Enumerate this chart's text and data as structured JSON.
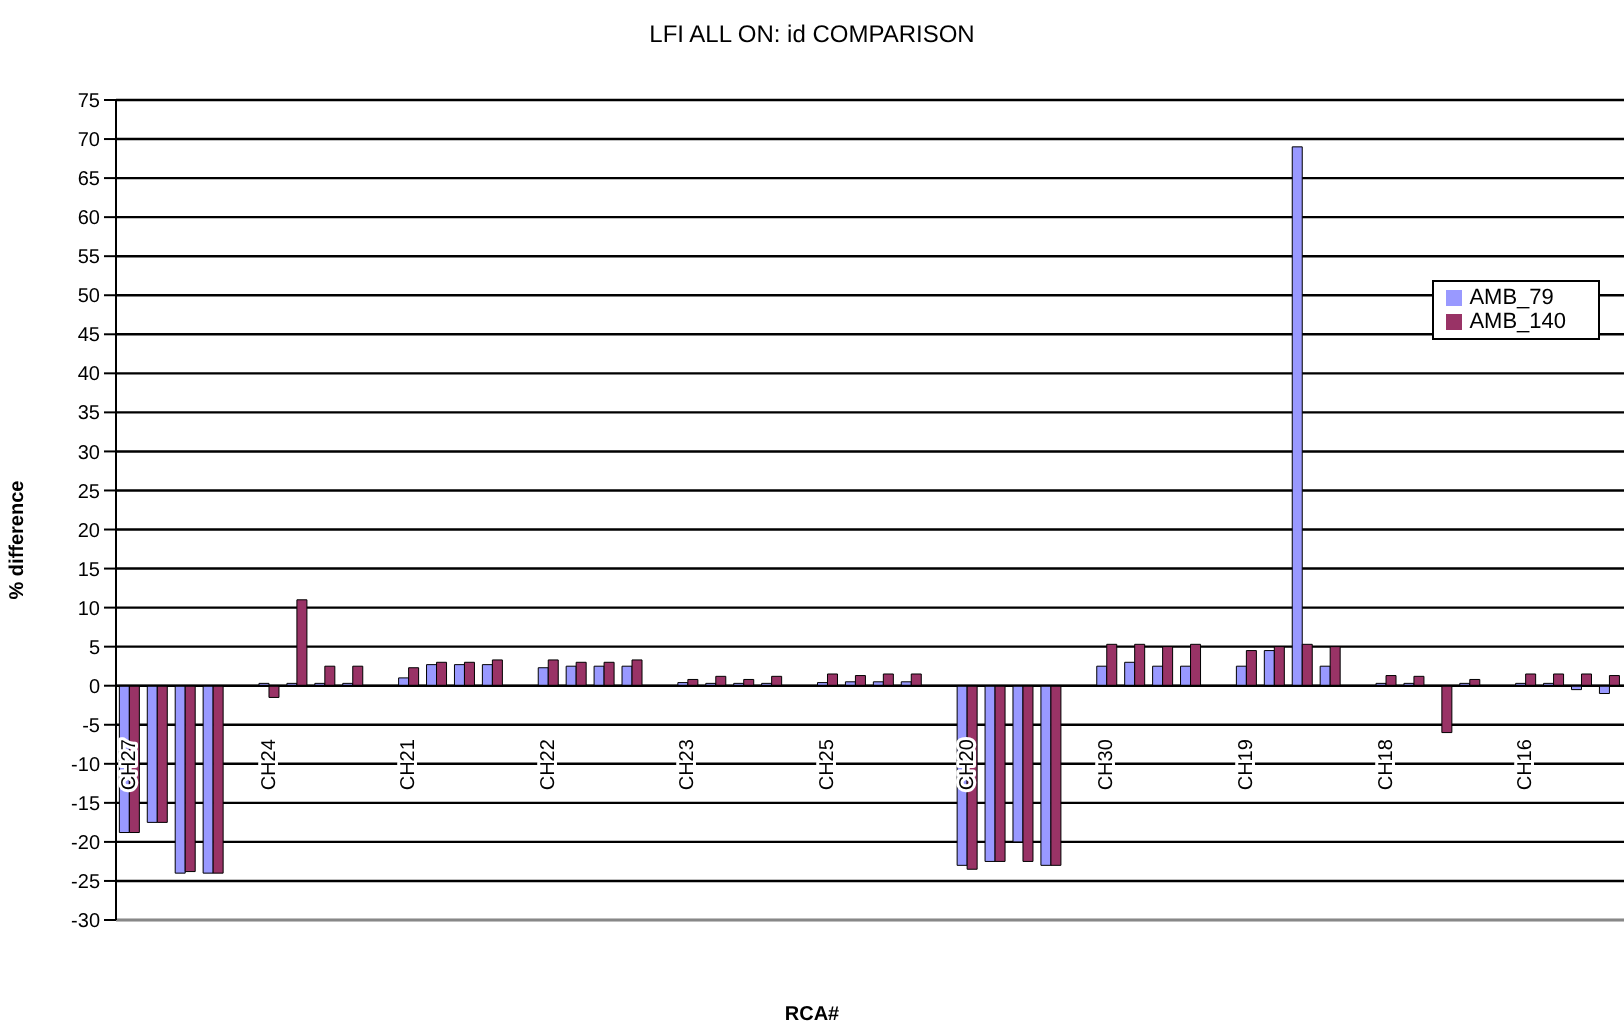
{
  "chart_data": {
    "type": "bar",
    "title": "LFI ALL ON: id COMPARISON",
    "xlabel": "RCA#",
    "ylabel": "% difference",
    "categories": [
      "CH27",
      null,
      null,
      null,
      null,
      "CH24",
      null,
      null,
      null,
      null,
      "CH21",
      null,
      null,
      null,
      null,
      "CH22",
      null,
      null,
      null,
      null,
      "CH23",
      null,
      null,
      null,
      null,
      "CH25",
      null,
      null,
      null,
      null,
      "CH20",
      null,
      null,
      null,
      null,
      "CH30",
      null,
      null,
      null,
      null,
      "CH19",
      null,
      null,
      null,
      null,
      "CH18",
      null,
      null,
      null,
      null,
      "CH16",
      null,
      null,
      null
    ],
    "series": [
      {
        "name": "AMB_79",
        "color": "#9999ff",
        "values": [
          -18.8,
          -17.5,
          -24,
          -24,
          null,
          0.3,
          0.3,
          0.3,
          0.3,
          null,
          1,
          2.7,
          2.7,
          2.7,
          null,
          2.3,
          2.5,
          2.5,
          2.5,
          null,
          0.4,
          0.3,
          0.3,
          0.3,
          null,
          0.4,
          0.5,
          0.5,
          0.5,
          null,
          -23,
          -22.5,
          -20,
          -23,
          null,
          2.5,
          3,
          2.5,
          2.5,
          null,
          2.5,
          4.5,
          69,
          2.5,
          null,
          0.3,
          0.3,
          0,
          0.3,
          null,
          0.3,
          0.3,
          -0.5,
          -1
        ]
      },
      {
        "name": "AMB_140",
        "color": "#993366",
        "values": [
          -18.8,
          -17.5,
          -23.8,
          -24,
          null,
          -1.5,
          11,
          2.5,
          2.5,
          null,
          2.3,
          3,
          3,
          3.3,
          null,
          3.3,
          3,
          3,
          3.3,
          null,
          0.8,
          1.2,
          0.8,
          1.2,
          null,
          1.5,
          1.3,
          1.5,
          1.5,
          null,
          -23.5,
          -22.5,
          -22.5,
          -23,
          null,
          5.3,
          5.3,
          5,
          5.3,
          null,
          4.5,
          5,
          5.3,
          5,
          null,
          1.3,
          1.2,
          -6,
          0.8,
          null,
          1.5,
          1.5,
          1.5,
          1.3
        ]
      }
    ],
    "ylim": [
      -30,
      75
    ],
    "yticks": [
      -30,
      -25,
      -20,
      -15,
      -10,
      -5,
      0,
      5,
      10,
      15,
      20,
      25,
      30,
      35,
      40,
      45,
      50,
      55,
      60,
      65,
      70,
      75
    ],
    "grid": "y",
    "legend": "right"
  }
}
